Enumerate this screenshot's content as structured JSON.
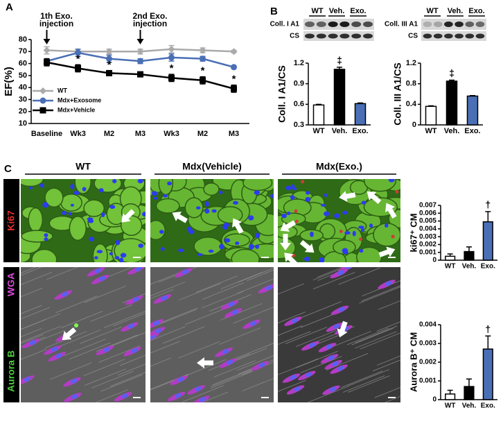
{
  "panel_labels": [
    "A",
    "B",
    "C"
  ],
  "chart_data": [
    {
      "type": "line",
      "ylabel": "EF(%)",
      "categories": [
        "Baseline",
        "Wk3",
        "M2",
        "M3",
        "Wk3",
        "M2",
        "M3"
      ],
      "ylim": [
        10,
        80
      ],
      "yticks": [
        10,
        20,
        30,
        40,
        50,
        60,
        70,
        80
      ],
      "annotations": [
        [
          "1th Exo.",
          "injection"
        ],
        [
          "2nd Exo.",
          "injection"
        ]
      ],
      "legend": "lower left",
      "series": [
        {
          "name": "WT",
          "color": "#aaaaaa",
          "marker": "diamond",
          "values": [
            71,
            70,
            70,
            70,
            72,
            71,
            70
          ],
          "errors": [
            3,
            2,
            2,
            2,
            3,
            2,
            1
          ]
        },
        {
          "name": "Mdx+Exosome",
          "color": "#4a6fb5",
          "marker": "circle",
          "values": [
            62,
            69,
            64,
            62,
            65,
            64,
            57
          ],
          "errors": [
            2,
            3,
            3,
            2,
            3,
            2,
            1
          ]
        },
        {
          "name": "Mdx+Vehicle",
          "color": "#000000",
          "marker": "square",
          "values": [
            61,
            56,
            52,
            51,
            48,
            46,
            39
          ],
          "errors": [
            3,
            3,
            2,
            2,
            3,
            3,
            3
          ],
          "significance": [
            null,
            "*",
            "*",
            null,
            "*",
            "*",
            "*"
          ]
        }
      ]
    },
    {
      "type": "bar",
      "ylabel": "Coll. I A1/CS",
      "categories": [
        "WT",
        "Veh.",
        "Exo."
      ],
      "colors": [
        "#ffffff",
        "#000000",
        "#4a6fb5"
      ],
      "values": [
        0.59,
        1.11,
        0.61
      ],
      "errors": [
        0.01,
        0.03,
        0.01
      ],
      "significance": [
        null,
        "‡",
        null
      ],
      "ylim": [
        0.3,
        1.2
      ],
      "yticks": [
        0.3,
        0.6,
        0.9,
        1.2
      ]
    },
    {
      "type": "bar",
      "ylabel": "Coll. III A1/CS",
      "categories": [
        "WT",
        "Veh.",
        "Exo."
      ],
      "colors": [
        "#ffffff",
        "#000000",
        "#4a6fb5"
      ],
      "values": [
        0.36,
        0.85,
        0.56
      ],
      "errors": [
        0.01,
        0.02,
        0.01
      ],
      "significance": [
        null,
        "‡",
        null
      ],
      "ylim": [
        0,
        1.2
      ],
      "yticks": [
        0,
        0.4,
        0.8,
        1.2
      ]
    },
    {
      "type": "bar",
      "ylabel": "ki67⁺ CM",
      "categories": [
        "WT",
        "Veh.",
        "Exo."
      ],
      "colors": [
        "#ffffff",
        "#000000",
        "#4a6fb5"
      ],
      "values": [
        0.0005,
        0.0011,
        0.0049
      ],
      "errors": [
        0.0003,
        0.0006,
        0.0013
      ],
      "significance": [
        null,
        null,
        "†"
      ],
      "ylim": [
        0,
        0.007
      ],
      "yticks": [
        0,
        0.001,
        0.002,
        0.003,
        0.004,
        0.005,
        0.006,
        0.007
      ]
    },
    {
      "type": "bar",
      "ylabel": "Aurora B⁺ CM",
      "categories": [
        "WT",
        "Veh.",
        "Exo."
      ],
      "colors": [
        "#ffffff",
        "#000000",
        "#4a6fb5"
      ],
      "values": [
        0.0003,
        0.0007,
        0.0027
      ],
      "errors": [
        0.0002,
        0.0004,
        0.0007
      ],
      "significance": [
        null,
        null,
        "†"
      ],
      "ylim": [
        0,
        0.004
      ],
      "yticks": [
        0,
        0.001,
        0.002,
        0.003,
        0.004
      ]
    }
  ],
  "blots": [
    {
      "lanes": [
        "WT",
        "Veh.",
        "Exo."
      ],
      "rows": [
        "Coll. I A1",
        "CS"
      ]
    },
    {
      "lanes": [
        "WT",
        "Veh.",
        "Exo."
      ],
      "rows": [
        "Coll. III A1",
        "CS"
      ]
    }
  ],
  "micrographs": {
    "columns": [
      "WT",
      "Mdx(Vehicle)",
      "Mdx(Exo.)"
    ],
    "rows": [
      [
        "Ki67"
      ],
      [
        "Aurora B",
        "WGA"
      ]
    ]
  }
}
